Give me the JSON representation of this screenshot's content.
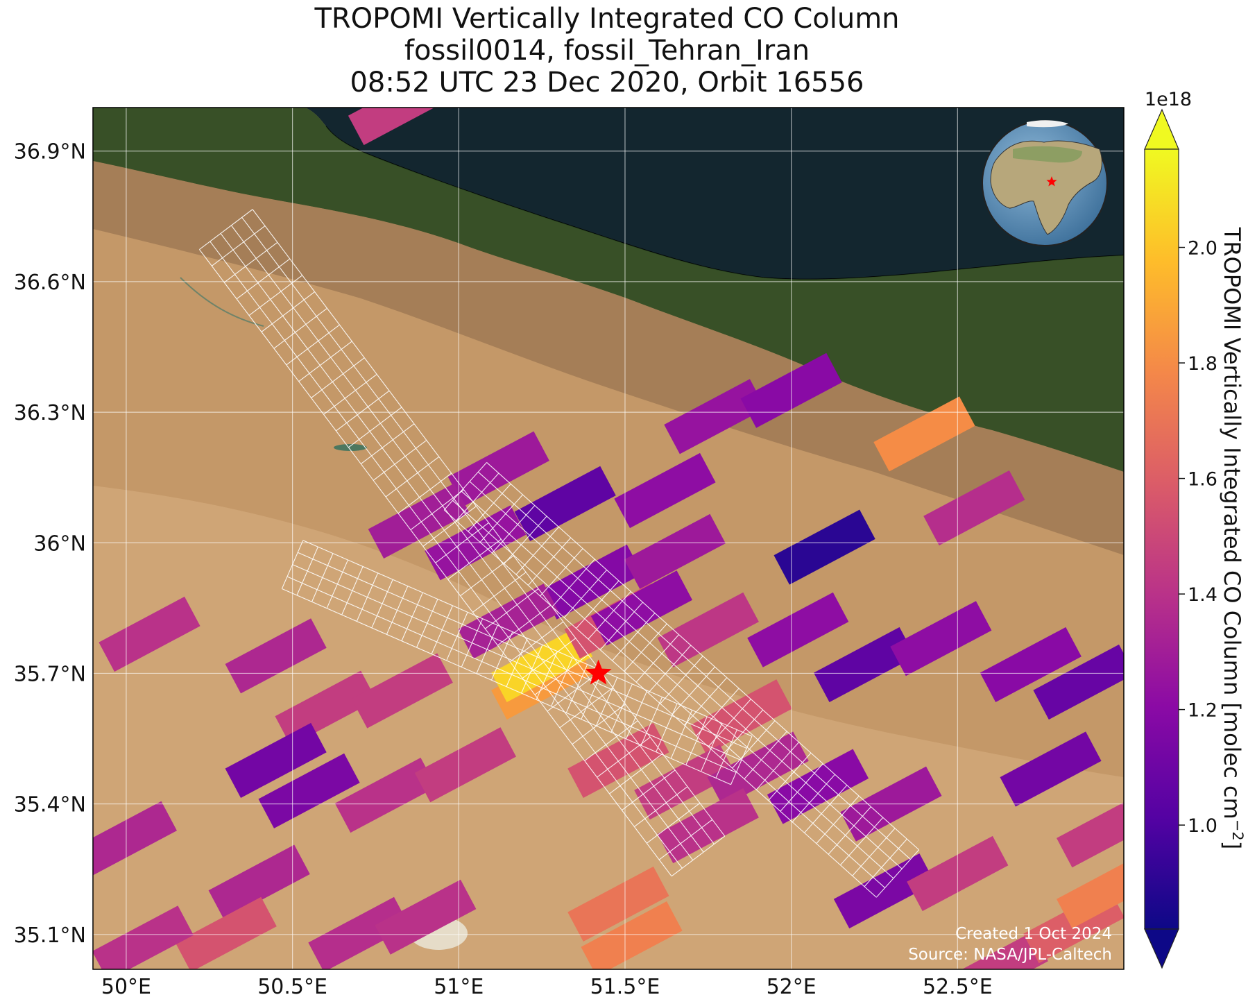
{
  "title": {
    "line1": "TROPOMI Vertically Integrated CO Column",
    "line2": "fossil0014, fossil_Tehran_Iran",
    "line3": "08:52 UTC 23 Dec 2020, Orbit 16556"
  },
  "map": {
    "lon_range": [
      49.9,
      53.0
    ],
    "lat_range": [
      35.02,
      37.0
    ],
    "lon_ticks": [
      {
        "v": 50.0,
        "label": "50°E"
      },
      {
        "v": 50.5,
        "label": "50.5°E"
      },
      {
        "v": 51.0,
        "label": "51°E"
      },
      {
        "v": 51.5,
        "label": "51.5°E"
      },
      {
        "v": 52.0,
        "label": "52°E"
      },
      {
        "v": 52.5,
        "label": "52.5°E"
      }
    ],
    "lat_ticks": [
      {
        "v": 35.1,
        "label": "35.1°N"
      },
      {
        "v": 35.4,
        "label": "35.4°N"
      },
      {
        "v": 35.7,
        "label": "35.7°N"
      },
      {
        "v": 36.0,
        "label": "36°N"
      },
      {
        "v": 36.3,
        "label": "36.3°N"
      },
      {
        "v": 36.6,
        "label": "36.6°N"
      },
      {
        "v": 36.9,
        "label": "36.9°N"
      }
    ],
    "target": {
      "name": "fossil_Tehran_Iran",
      "lon": 51.42,
      "lat": 35.7
    },
    "colors": {
      "sea": "#13262f",
      "forest": "#2b4a22",
      "land": "#c49868",
      "desert": "#d4ab7c",
      "salt": "#e8e2d2",
      "star": "#ff0000",
      "grid": "#ffffff",
      "target_outline": "#ffffff"
    },
    "credit": {
      "line1": "Created 1 Oct 2024",
      "line2": "Source: NASA/JPL-Caltech"
    }
  },
  "colorbar": {
    "label": "TROPOMI Vertically Integrated CO Column [molec cm",
    "label_sup": "−2",
    "label_tail": "]",
    "multiplier": "1e18",
    "vmin": 0.82,
    "vmax": 2.17,
    "ticks": [
      {
        "v": 1.0,
        "label": "1.0"
      },
      {
        "v": 1.2,
        "label": "1.2"
      },
      {
        "v": 1.4,
        "label": "1.4"
      },
      {
        "v": 1.6,
        "label": "1.6"
      },
      {
        "v": 1.8,
        "label": "1.8"
      },
      {
        "v": 2.0,
        "label": "2.0"
      }
    ],
    "colormap": "plasma",
    "extend": "both",
    "colors": [
      "#0d0887",
      "#5402a3",
      "#8b0aa5",
      "#b93289",
      "#db5c68",
      "#f48849",
      "#febd2a",
      "#f0f921"
    ]
  },
  "soundings": [
    {
      "lon": 50.82,
      "lat": 37.0,
      "v": 1.45
    },
    {
      "lon": 50.07,
      "lat": 35.79,
      "v": 1.4
    },
    {
      "lon": 50.45,
      "lat": 35.74,
      "v": 1.35
    },
    {
      "lon": 50.6,
      "lat": 35.62,
      "v": 1.45
    },
    {
      "lon": 50.83,
      "lat": 35.66,
      "v": 1.45
    },
    {
      "lon": 50.45,
      "lat": 35.5,
      "v": 1.12
    },
    {
      "lon": 50.55,
      "lat": 35.43,
      "v": 1.15
    },
    {
      "lon": 50.78,
      "lat": 35.42,
      "v": 1.4
    },
    {
      "lon": 50.0,
      "lat": 35.32,
      "v": 1.35
    },
    {
      "lon": 50.4,
      "lat": 35.22,
      "v": 1.35
    },
    {
      "lon": 50.3,
      "lat": 35.1,
      "v": 1.55
    },
    {
      "lon": 50.05,
      "lat": 35.08,
      "v": 1.4
    },
    {
      "lon": 50.7,
      "lat": 35.1,
      "v": 1.38
    },
    {
      "lon": 50.9,
      "lat": 35.14,
      "v": 1.4
    },
    {
      "lon": 51.12,
      "lat": 36.17,
      "v": 1.28
    },
    {
      "lon": 50.88,
      "lat": 36.05,
      "v": 1.3
    },
    {
      "lon": 51.05,
      "lat": 36.0,
      "v": 1.25
    },
    {
      "lon": 51.32,
      "lat": 36.09,
      "v": 1.05
    },
    {
      "lon": 51.4,
      "lat": 35.91,
      "v": 1.18
    },
    {
      "lon": 51.62,
      "lat": 36.12,
      "v": 1.22
    },
    {
      "lon": 51.65,
      "lat": 35.98,
      "v": 1.28
    },
    {
      "lon": 51.77,
      "lat": 36.29,
      "v": 1.25
    },
    {
      "lon": 52.0,
      "lat": 36.35,
      "v": 1.2
    },
    {
      "lon": 52.1,
      "lat": 35.99,
      "v": 0.9
    },
    {
      "lon": 52.4,
      "lat": 36.25,
      "v": 1.8
    },
    {
      "lon": 52.55,
      "lat": 36.08,
      "v": 1.38
    },
    {
      "lon": 51.15,
      "lat": 35.82,
      "v": 1.32
    },
    {
      "lon": 51.25,
      "lat": 35.68,
      "v": 1.85
    },
    {
      "lon": 51.25,
      "lat": 35.72,
      "v": 2.05
    },
    {
      "lon": 51.47,
      "lat": 35.82,
      "v": 1.55
    },
    {
      "lon": 51.55,
      "lat": 35.85,
      "v": 1.22
    },
    {
      "lon": 51.75,
      "lat": 35.8,
      "v": 1.42
    },
    {
      "lon": 51.85,
      "lat": 35.6,
      "v": 1.55
    },
    {
      "lon": 52.02,
      "lat": 35.8,
      "v": 1.22
    },
    {
      "lon": 52.22,
      "lat": 35.72,
      "v": 1.05
    },
    {
      "lon": 52.45,
      "lat": 35.78,
      "v": 1.22
    },
    {
      "lon": 52.72,
      "lat": 35.72,
      "v": 1.2
    },
    {
      "lon": 52.88,
      "lat": 35.68,
      "v": 1.08
    },
    {
      "lon": 52.78,
      "lat": 35.48,
      "v": 1.12
    },
    {
      "lon": 52.95,
      "lat": 35.34,
      "v": 1.45
    },
    {
      "lon": 51.48,
      "lat": 35.5,
      "v": 1.55
    },
    {
      "lon": 51.68,
      "lat": 35.45,
      "v": 1.45
    },
    {
      "lon": 51.9,
      "lat": 35.48,
      "v": 1.35
    },
    {
      "lon": 52.08,
      "lat": 35.44,
      "v": 1.2
    },
    {
      "lon": 52.3,
      "lat": 35.4,
      "v": 1.28
    },
    {
      "lon": 51.02,
      "lat": 35.49,
      "v": 1.45
    },
    {
      "lon": 51.48,
      "lat": 35.17,
      "v": 1.7
    },
    {
      "lon": 51.52,
      "lat": 35.09,
      "v": 1.75
    },
    {
      "lon": 51.75,
      "lat": 35.35,
      "v": 1.4
    },
    {
      "lon": 52.28,
      "lat": 35.2,
      "v": 1.15
    },
    {
      "lon": 52.5,
      "lat": 35.24,
      "v": 1.45
    },
    {
      "lon": 52.62,
      "lat": 35.02,
      "v": 1.45
    },
    {
      "lon": 52.85,
      "lat": 35.12,
      "v": 1.6
    },
    {
      "lon": 52.95,
      "lat": 35.2,
      "v": 1.75
    }
  ]
}
